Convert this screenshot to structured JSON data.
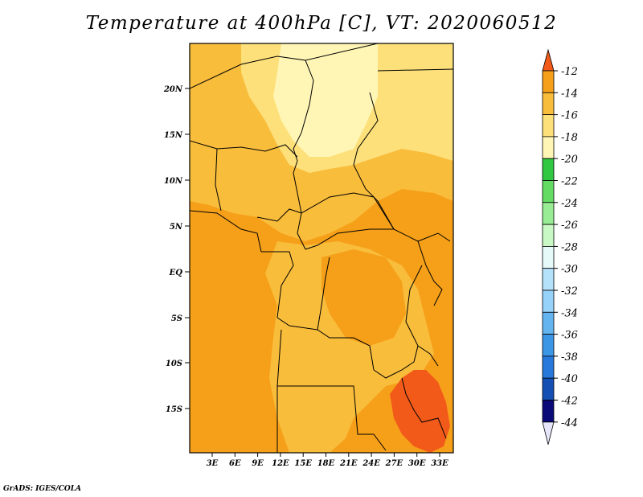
{
  "title": "Temperature at 400hPa [C], VT: 2020060512",
  "credit": "GrADS: IGES/COLA",
  "map": {
    "region": "Central Africa",
    "lat_labels": [
      "20N",
      "15N",
      "10N",
      "5N",
      "EQ",
      "5S",
      "10S",
      "15S"
    ],
    "lon_labels": [
      "3E",
      "6E",
      "9E",
      "12E",
      "15E",
      "18E",
      "21E",
      "24E",
      "27E",
      "30E",
      "33E"
    ],
    "field_colors": {
      "c_m12": "#f25a1a",
      "c_m14": "#f6a01a",
      "c_m16": "#f9bd3c",
      "c_m18": "#fde07a",
      "c_m20": "#fff6b6"
    }
  },
  "colorbar": {
    "labels": [
      "-12",
      "-14",
      "-16",
      "-18",
      "-20",
      "-22",
      "-24",
      "-26",
      "-28",
      "-30",
      "-32",
      "-34",
      "-36",
      "-38",
      "-40",
      "-42",
      "-44"
    ],
    "top_color": "#f25a1a",
    "colors": [
      "#f46b10",
      "#f6a01a",
      "#f9bd3c",
      "#fde07a",
      "#fff6b6",
      "#30c840",
      "#64dc64",
      "#98ec94",
      "#c8f8c4",
      "#e6fafa",
      "#b4e2fa",
      "#96d2fa",
      "#64b4f0",
      "#3c96e6",
      "#2878dc",
      "#1450b4",
      "#0a0a78"
    ],
    "bottom_color": "#e6e6fa"
  }
}
